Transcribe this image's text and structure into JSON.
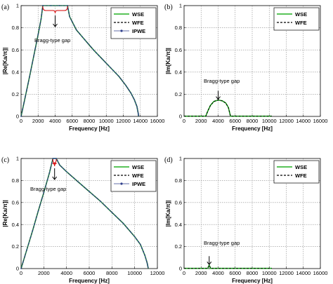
{
  "colors": {
    "wse": "#22b022",
    "wfe": "#000000",
    "ipwe": "#2f3f8c",
    "bracket": "#d40000",
    "grid": "#8c8c8c"
  },
  "chart_data": [
    {
      "type": "line",
      "panel_label": "(a)",
      "xlabel": "Frequency [Hz]",
      "ylabel": "|Re[Ka/π]|",
      "xlim": [
        0,
        16000
      ],
      "ylim": [
        0,
        1
      ],
      "xticks": [
        0,
        2000,
        4000,
        6000,
        8000,
        10000,
        12000,
        14000,
        16000
      ],
      "yticks": [
        0,
        0.2,
        0.4,
        0.6,
        0.8,
        1
      ],
      "grid": true,
      "legend_position": "top-right",
      "series": [
        {
          "name": "WSE",
          "style": "solid"
        },
        {
          "name": "WFE",
          "style": "dashed"
        },
        {
          "name": "IPWE",
          "style": "dot-marker"
        }
      ],
      "curve": [
        [
          0,
          0
        ],
        [
          500,
          0.18
        ],
        [
          1000,
          0.36
        ],
        [
          1500,
          0.55
        ],
        [
          2000,
          0.74
        ],
        [
          2350,
          0.88
        ],
        [
          2550,
          1
        ],
        [
          5450,
          1
        ],
        [
          5700,
          0.9
        ],
        [
          6500,
          0.78
        ],
        [
          7500,
          0.69
        ],
        [
          8500,
          0.6
        ],
        [
          9500,
          0.52
        ],
        [
          10500,
          0.44
        ],
        [
          11500,
          0.36
        ],
        [
          12300,
          0.28
        ],
        [
          12900,
          0.21
        ],
        [
          13300,
          0.15
        ],
        [
          13600,
          0.09
        ],
        [
          13750,
          0.03
        ],
        [
          13800,
          0
        ]
      ],
      "gap_range": [
        2550,
        5450
      ],
      "annotation": {
        "text": "Bragg-type gap",
        "target_x": 4000
      }
    },
    {
      "type": "line",
      "panel_label": "(b)",
      "xlabel": "Frequency [Hz]",
      "ylabel": "|Im[Ka/π]|",
      "xlim": [
        0,
        16000
      ],
      "ylim": [
        0,
        1
      ],
      "xticks": [
        0,
        2000,
        4000,
        6000,
        8000,
        10000,
        12000,
        14000,
        16000
      ],
      "yticks": [
        0,
        0.2,
        0.4,
        0.6,
        0.8,
        1
      ],
      "grid": true,
      "legend_position": "top-right",
      "series": [
        {
          "name": "WSE",
          "style": "solid"
        },
        {
          "name": "WFE",
          "style": "dashed"
        }
      ],
      "curve": [
        [
          0,
          0.002
        ],
        [
          2550,
          0.002
        ],
        [
          2800,
          0.05
        ],
        [
          3100,
          0.1
        ],
        [
          3500,
          0.135
        ],
        [
          4000,
          0.148
        ],
        [
          4500,
          0.14
        ],
        [
          4900,
          0.12
        ],
        [
          5200,
          0.08
        ],
        [
          5450,
          0.002
        ],
        [
          10300,
          0.002
        ]
      ],
      "annotation": {
        "text": "Bragg-type gap",
        "target_x": 4000
      }
    },
    {
      "type": "line",
      "panel_label": "(c)",
      "xlabel": "Frequency [Hz]",
      "ylabel": "|Re[Ka/π]|",
      "xlim": [
        0,
        12000
      ],
      "ylim": [
        0,
        1
      ],
      "xticks": [
        0,
        2000,
        4000,
        6000,
        8000,
        10000,
        12000
      ],
      "yticks": [
        0,
        0.2,
        0.4,
        0.6,
        0.8,
        1
      ],
      "grid": true,
      "legend_position": "top-right",
      "series": [
        {
          "name": "WSE",
          "style": "solid"
        },
        {
          "name": "WFE",
          "style": "dashed"
        },
        {
          "name": "IPWE",
          "style": "dot-marker"
        }
      ],
      "curve": [
        [
          0,
          0
        ],
        [
          500,
          0.17
        ],
        [
          1000,
          0.34
        ],
        [
          1500,
          0.52
        ],
        [
          2000,
          0.69
        ],
        [
          2500,
          0.87
        ],
        [
          2800,
          1
        ],
        [
          3100,
          1
        ],
        [
          3400,
          0.94
        ],
        [
          4000,
          0.88
        ],
        [
          5000,
          0.79
        ],
        [
          6000,
          0.7
        ],
        [
          7000,
          0.61
        ],
        [
          8000,
          0.51
        ],
        [
          9000,
          0.41
        ],
        [
          10000,
          0.29
        ],
        [
          10500,
          0.22
        ],
        [
          10900,
          0.12
        ],
        [
          11100,
          0.05
        ],
        [
          11200,
          0
        ]
      ],
      "gap_range": [
        2800,
        3100
      ],
      "annotation": {
        "text": "Bragg-type gap",
        "target_x": 2950
      }
    },
    {
      "type": "line",
      "panel_label": "(d)",
      "xlabel": "Frequency [Hz]",
      "ylabel": "|Im[Ka/π]|",
      "xlim": [
        0,
        16000
      ],
      "ylim": [
        0,
        1
      ],
      "xticks": [
        0,
        2000,
        4000,
        6000,
        8000,
        10000,
        12000,
        14000,
        16000
      ],
      "yticks": [
        0,
        0.2,
        0.4,
        0.6,
        0.8,
        1
      ],
      "grid": true,
      "legend_position": "top-right",
      "series": [
        {
          "name": "WSE",
          "style": "solid"
        },
        {
          "name": "WFE",
          "style": "dashed"
        }
      ],
      "curve": [
        [
          0,
          0.002
        ],
        [
          2800,
          0.002
        ],
        [
          2870,
          0.02
        ],
        [
          2950,
          0.03
        ],
        [
          3030,
          0.02
        ],
        [
          3100,
          0.002
        ],
        [
          10300,
          0.002
        ]
      ],
      "annotation": {
        "text": "Bragg-type gap",
        "target_x": 2950
      }
    }
  ]
}
